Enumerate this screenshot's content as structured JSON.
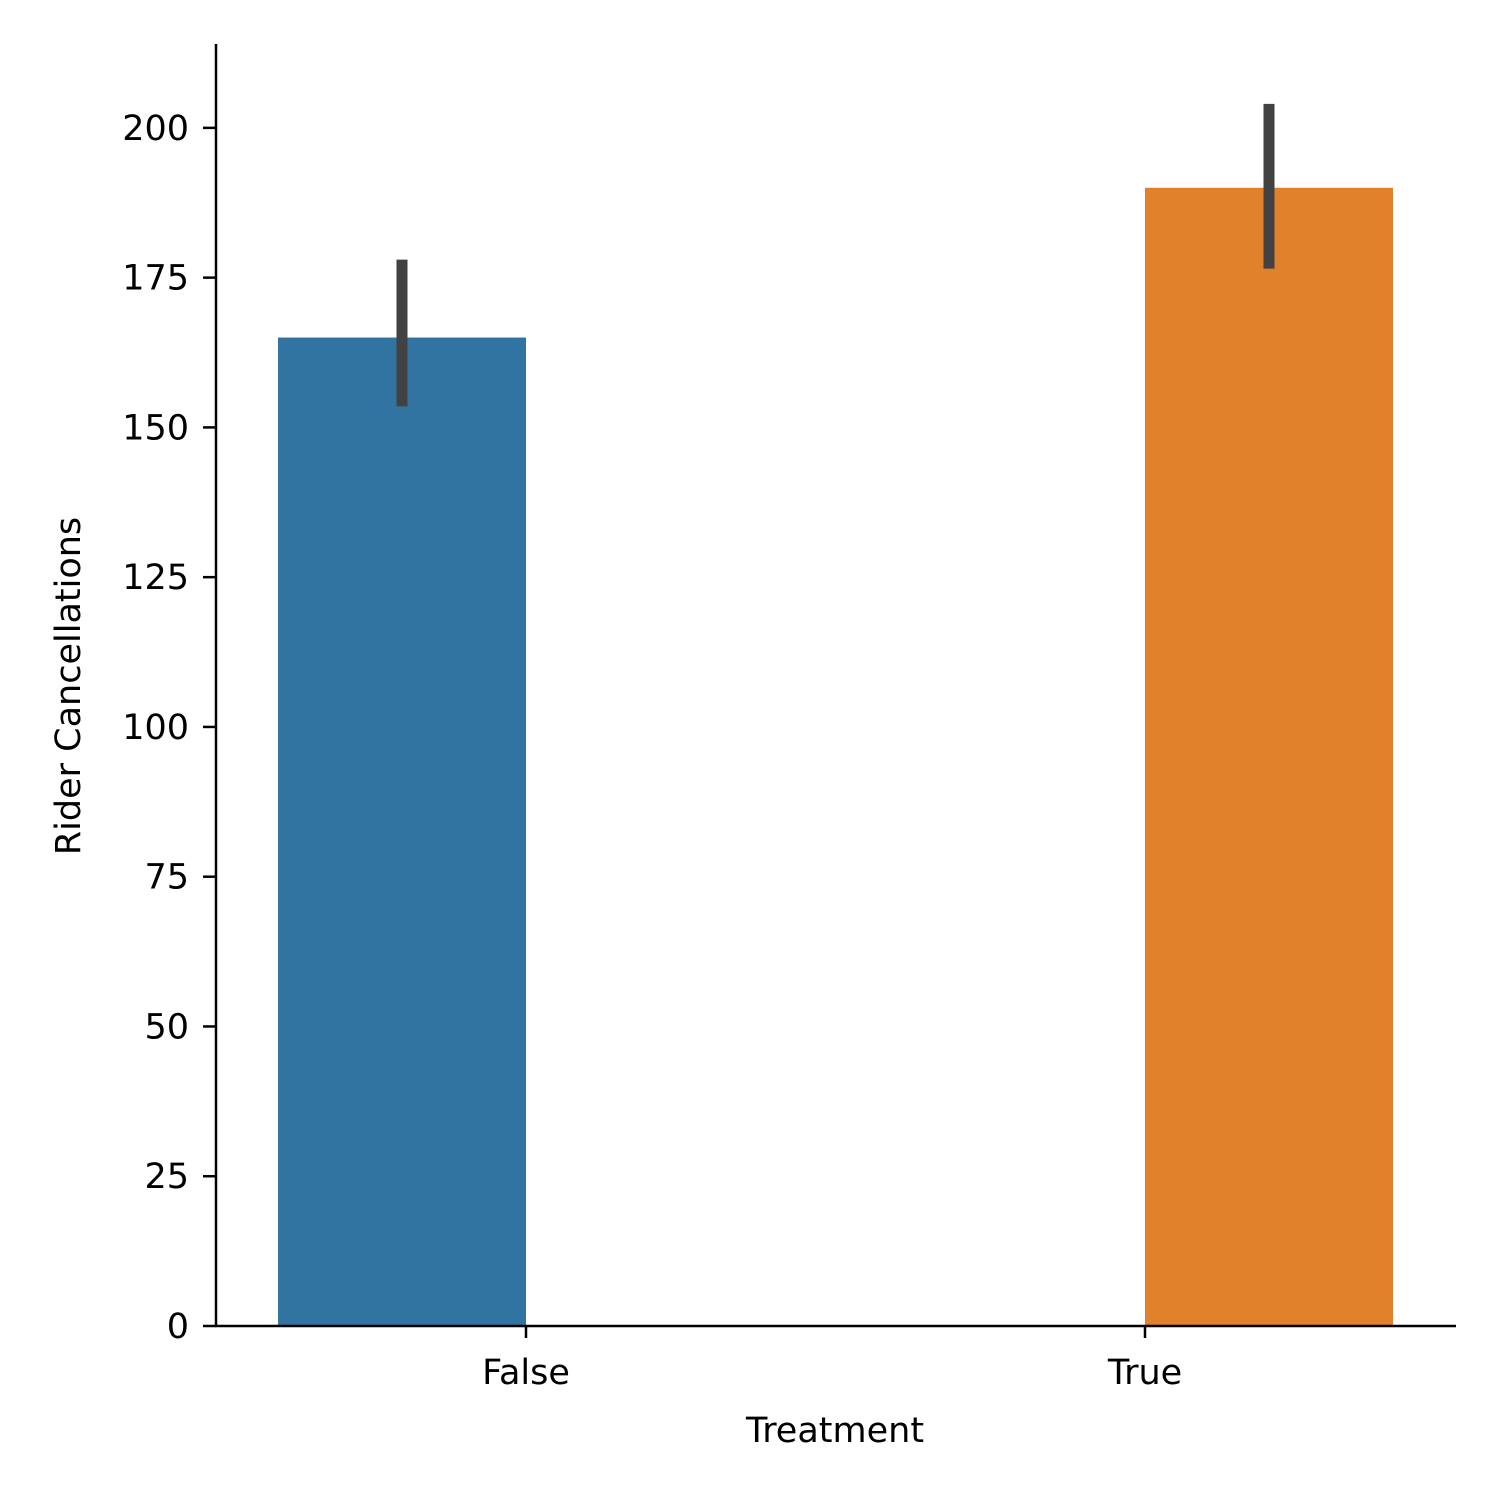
{
  "chart_data": {
    "type": "bar",
    "categories": [
      "False",
      "True"
    ],
    "values": [
      165,
      190
    ],
    "error_bars": [
      {
        "low": 153.5,
        "high": 178
      },
      {
        "low": 176.5,
        "high": 204
      }
    ],
    "colors": [
      "#3274a1",
      "#e1812c"
    ],
    "error_bar_color": "#424242",
    "xlabel": "Treatment",
    "ylabel": "Rider Cancellations",
    "ylim": [
      0,
      214
    ],
    "yticks": [
      0,
      25,
      50,
      75,
      100,
      125,
      150,
      175,
      200
    ],
    "grid": false
  }
}
